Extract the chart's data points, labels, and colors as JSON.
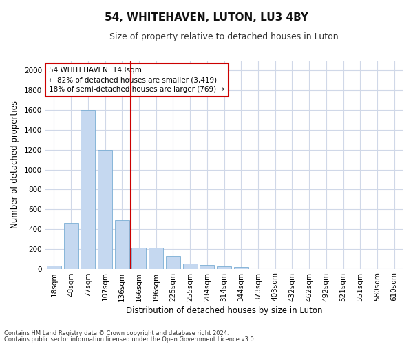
{
  "title": "54, WHITEHAVEN, LUTON, LU3 4BY",
  "subtitle": "Size of property relative to detached houses in Luton",
  "xlabel": "Distribution of detached houses by size in Luton",
  "ylabel": "Number of detached properties",
  "categories": [
    "18sqm",
    "48sqm",
    "77sqm",
    "107sqm",
    "136sqm",
    "166sqm",
    "196sqm",
    "225sqm",
    "255sqm",
    "284sqm",
    "314sqm",
    "344sqm",
    "373sqm",
    "403sqm",
    "432sqm",
    "462sqm",
    "492sqm",
    "521sqm",
    "551sqm",
    "580sqm",
    "610sqm"
  ],
  "values": [
    35,
    460,
    1600,
    1200,
    490,
    210,
    210,
    130,
    50,
    40,
    25,
    15,
    0,
    0,
    0,
    0,
    0,
    0,
    0,
    0,
    0
  ],
  "bar_color": "#c5d8f0",
  "bar_edge_color": "#7aadd4",
  "vline_color": "#cc0000",
  "vline_x_index": 4.5,
  "annotation_title": "54 WHITEHAVEN: 143sqm",
  "annotation_line1": "← 82% of detached houses are smaller (3,419)",
  "annotation_line2": "18% of semi-detached houses are larger (769) →",
  "ylim": [
    0,
    2100
  ],
  "yticks": [
    0,
    200,
    400,
    600,
    800,
    1000,
    1200,
    1400,
    1600,
    1800,
    2000
  ],
  "footnote1": "Contains HM Land Registry data © Crown copyright and database right 2024.",
  "footnote2": "Contains public sector information licensed under the Open Government Licence v3.0.",
  "bg_color": "#ffffff",
  "plot_bg_color": "#ffffff",
  "grid_color": "#d0d8e8",
  "title_fontsize": 11,
  "subtitle_fontsize": 9,
  "axis_label_fontsize": 8.5,
  "tick_fontsize": 7.5,
  "annot_fontsize": 7.5
}
